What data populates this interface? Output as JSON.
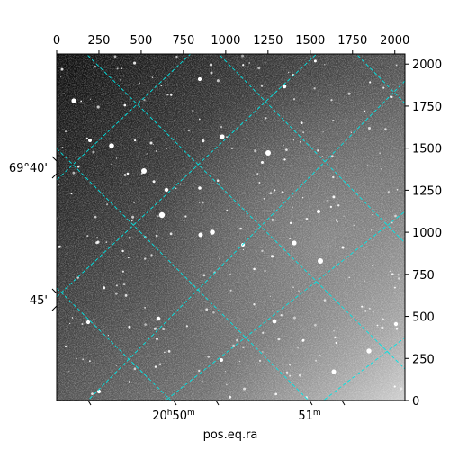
{
  "figure": {
    "axis_label_bottom": "pos.eq.ra",
    "top_axis_ticks": [
      "0",
      "250",
      "500",
      "750",
      "1000",
      "1250",
      "1500",
      "1750",
      "2000"
    ],
    "right_axis_ticks": [
      "0",
      "250",
      "500",
      "750",
      "1000",
      "1250",
      "1500",
      "1750",
      "2000"
    ],
    "left_axis_ticks": [
      "69°40'",
      "45'"
    ],
    "bottom_axis_ticks": [
      {
        "main": "20",
        "sup1": "h",
        "mid": "50",
        "sup2": "m"
      },
      {
        "main": "51",
        "sup1": "m",
        "mid": "",
        "sup2": ""
      }
    ],
    "grid_color": "#00e5e5",
    "image_colormap": "gray"
  }
}
